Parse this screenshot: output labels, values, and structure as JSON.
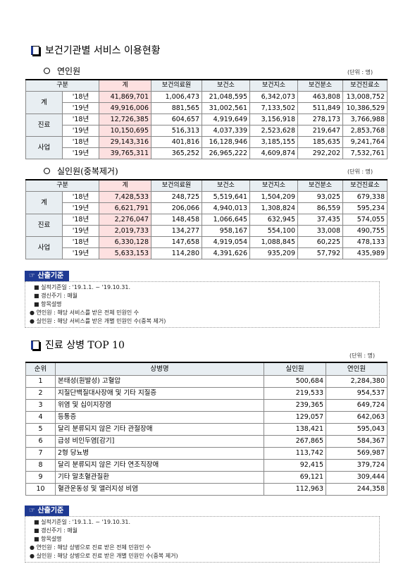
{
  "section1": {
    "title": "보건기관별 서비스 이용현황",
    "table_a": {
      "subtitle": "연인원",
      "unit": "(단위 : 명)",
      "headers": [
        "구분",
        "계",
        "보건의료원",
        "보건소",
        "보건지소",
        "보건분소",
        "보건진료소"
      ],
      "groups": [
        {
          "label": "계",
          "rows": [
            {
              "year": "'18년",
              "values": [
                "41,869,701",
                "1,006,473",
                "21,048,595",
                "6,342,073",
                "463,808",
                "13,008,752"
              ]
            },
            {
              "year": "'19년",
              "values": [
                "49,916,006",
                "881,565",
                "31,002,561",
                "7,133,502",
                "511,849",
                "10,386,529"
              ]
            }
          ]
        },
        {
          "label": "진료",
          "rows": [
            {
              "year": "'18년",
              "values": [
                "12,726,385",
                "604,657",
                "4,919,649",
                "3,156,918",
                "278,173",
                "3,766,988"
              ]
            },
            {
              "year": "'19년",
              "values": [
                "10,150,695",
                "516,313",
                "4,037,339",
                "2,523,628",
                "219,647",
                "2,853,768"
              ]
            }
          ]
        },
        {
          "label": "사업",
          "rows": [
            {
              "year": "'18년",
              "values": [
                "29,143,316",
                "401,816",
                "16,128,946",
                "3,185,155",
                "185,635",
                "9,241,764"
              ]
            },
            {
              "year": "'19년",
              "values": [
                "39,765,311",
                "365,252",
                "26,965,222",
                "4,609,874",
                "292,202",
                "7,532,761"
              ]
            }
          ]
        }
      ]
    },
    "table_b": {
      "subtitle": "실인원(중복제거)",
      "unit": "(단위 : 명)",
      "headers": [
        "구분",
        "계",
        "보건의료원",
        "보건소",
        "보건지소",
        "보건분소",
        "보건진료소"
      ],
      "groups": [
        {
          "label": "계",
          "rows": [
            {
              "year": "'18년",
              "values": [
                "7,428,533",
                "248,725",
                "5,519,641",
                "1,504,209",
                "93,025",
                "679,338"
              ]
            },
            {
              "year": "'19년",
              "values": [
                "6,621,791",
                "206,066",
                "4,940,013",
                "1,308,824",
                "86,559",
                "595,234"
              ]
            }
          ]
        },
        {
          "label": "진료",
          "rows": [
            {
              "year": "'18년",
              "values": [
                "2,276,047",
                "148,458",
                "1,066,645",
                "632,945",
                "37,435",
                "574,055"
              ]
            },
            {
              "year": "'19년",
              "values": [
                "2,019,733",
                "134,277",
                "958,167",
                "554,100",
                "33,008",
                "490,755"
              ]
            }
          ]
        },
        {
          "label": "사업",
          "rows": [
            {
              "year": "'18년",
              "values": [
                "6,330,128",
                "147,658",
                "4,919,054",
                "1,088,845",
                "60,225",
                "478,133"
              ]
            },
            {
              "year": "'19년",
              "values": [
                "5,633,153",
                "114,280",
                "4,391,626",
                "935,209",
                "57,792",
                "435,989"
              ]
            }
          ]
        }
      ]
    },
    "basis": {
      "header": "☞ 산출기준",
      "lines": [
        "■ 실적기준일 : '19.1.1. ~ '19.10.31.",
        "■ 갱신주기 : 매월",
        "■ 항목설명",
        "● 연인원 : 해당 서비스를 받은 전체 민원인 수",
        "● 실인원 : 해당 서비스를 받은 개별 민원인 수(중복 제거)"
      ]
    }
  },
  "section2": {
    "title": "진료 상병 TOP 10",
    "unit": "(단위 : 명)",
    "headers": [
      "순위",
      "상병명",
      "실인원",
      "연인원"
    ],
    "rows": [
      {
        "rank": "1",
        "name": "본태성(원발성) 고혈압",
        "real": "500,684",
        "total": "2,284,380"
      },
      {
        "rank": "2",
        "name": "지질단백질대사장애 및 기타 지질증",
        "real": "219,533",
        "total": "954,537"
      },
      {
        "rank": "3",
        "name": "위염 및 십이지장염",
        "real": "239,365",
        "total": "649,724"
      },
      {
        "rank": "4",
        "name": "등통증",
        "real": "129,057",
        "total": "642,063"
      },
      {
        "rank": "5",
        "name": "달리 분류되지 않은 기타 관절장애",
        "real": "138,421",
        "total": "595,043"
      },
      {
        "rank": "6",
        "name": "급성 비인두염[감기]",
        "real": "267,865",
        "total": "584,367"
      },
      {
        "rank": "7",
        "name": "2형 당뇨병",
        "real": "113,742",
        "total": "569,987"
      },
      {
        "rank": "8",
        "name": "달리 분류되지 않은 기타 연조직장애",
        "real": "92,415",
        "total": "379,724"
      },
      {
        "rank": "9",
        "name": "기타 말초혈관질환",
        "real": "69,121",
        "total": "309,444"
      },
      {
        "rank": "10",
        "name": "혈관운동성 및 앨러지성 비염",
        "real": "112,963",
        "total": "244,358"
      }
    ],
    "basis": {
      "header": "☞ 산출기준",
      "lines": [
        "■ 실적기준일 : '19.1.1. ~ '19.10.31.",
        "■ 갱신주기 : 매월",
        "■ 항목설명",
        "● 연인원 : 해당 상병으로 진료 받은 전체 민원인 수",
        "● 실인원 : 해당 상병으로 진료 받은 개별 민원인 수(중복 제거)"
      ]
    }
  }
}
